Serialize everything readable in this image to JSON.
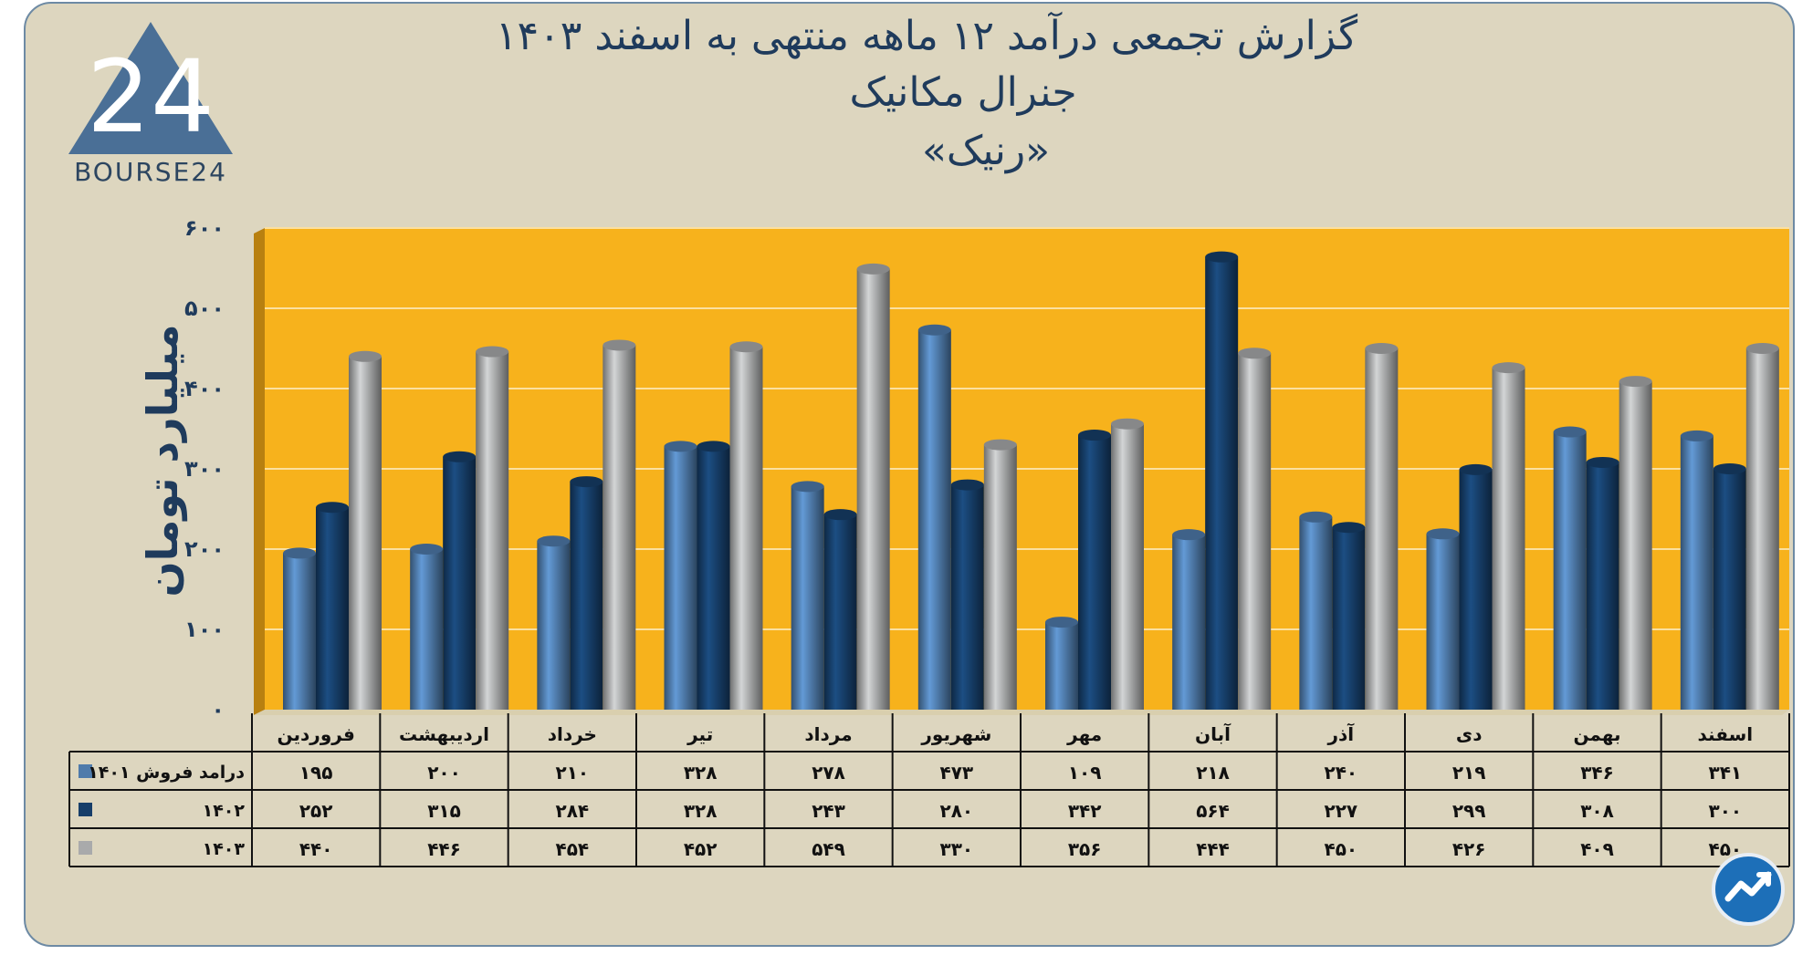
{
  "title": {
    "line1": "گزارش تجمعی درآمد ۱۲ ماهه منتهی به اسفند ۱۴۰۳",
    "line2": "جنرال مکانیک",
    "line3": "«رنیک»"
  },
  "logo": {
    "text": "BOURSE24",
    "mark": "24"
  },
  "colors": {
    "background": "#ddd6bf",
    "plot": "#f7b21c",
    "series1": "#4f7bab",
    "series2": "#163e69",
    "series3": "#a9aaab",
    "text": "#1f3b5c"
  },
  "chart_data": {
    "type": "bar",
    "ylabel": "میلیارد تومان",
    "ylim": [
      0,
      600
    ],
    "yticks": [
      "۰",
      "۱۰۰",
      "۲۰۰",
      "۳۰۰",
      "۴۰۰",
      "۵۰۰",
      "۶۰۰"
    ],
    "grid": true,
    "categories": [
      "فروردین",
      "اردیبهشت",
      "خرداد",
      "تیر",
      "مرداد",
      "شهریور",
      "مهر",
      "آبان",
      "آذر",
      "دی",
      "بهمن",
      "اسفند"
    ],
    "series": [
      {
        "name": "درامد فروش ۱۴۰۱",
        "color": "#4f7bab",
        "values": [
          195,
          200,
          210,
          328,
          278,
          473,
          109,
          218,
          240,
          219,
          346,
          341
        ],
        "labels": [
          "۱۹۵",
          "۲۰۰",
          "۲۱۰",
          "۳۲۸",
          "۲۷۸",
          "۴۷۳",
          "۱۰۹",
          "۲۱۸",
          "۲۴۰",
          "۲۱۹",
          "۳۴۶",
          "۳۴۱"
        ]
      },
      {
        "name": "۱۴۰۲",
        "color": "#163e69",
        "values": [
          252,
          315,
          284,
          328,
          243,
          280,
          342,
          564,
          227,
          299,
          308,
          300
        ],
        "labels": [
          "۲۵۲",
          "۳۱۵",
          "۲۸۴",
          "۳۲۸",
          "۲۴۳",
          "۲۸۰",
          "۳۴۲",
          "۵۶۴",
          "۲۲۷",
          "۲۹۹",
          "۳۰۸",
          "۳۰۰"
        ]
      },
      {
        "name": "۱۴۰۳",
        "color": "#a9aaab",
        "values": [
          440,
          446,
          454,
          452,
          549,
          330,
          356,
          444,
          450,
          426,
          409,
          450
        ],
        "labels": [
          "۴۴۰",
          "۴۴۶",
          "۴۵۴",
          "۴۵۲",
          "۵۴۹",
          "۳۳۰",
          "۳۵۶",
          "۴۴۴",
          "۴۵۰",
          "۴۲۶",
          "۴۰۹",
          "۴۵۰"
        ]
      }
    ]
  }
}
